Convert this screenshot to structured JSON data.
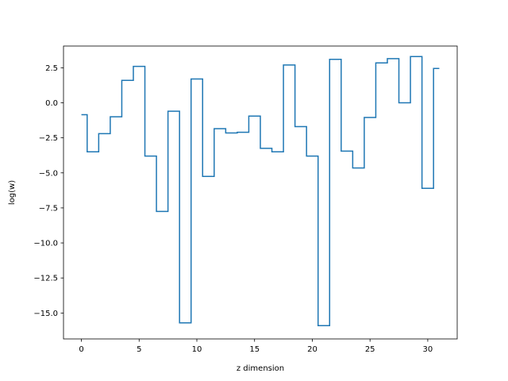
{
  "chart_data": {
    "type": "line",
    "step": "mid",
    "xlabel": "z dimension",
    "ylabel": "log(w)",
    "xlim": [
      -1.55,
      32.55
    ],
    "ylim": [
      -16.85,
      4.05
    ],
    "xticks": [
      0,
      5,
      10,
      15,
      20,
      25,
      30
    ],
    "yticks": [
      2.5,
      0.0,
      -2.5,
      -5.0,
      -7.5,
      -10.0,
      -12.5,
      -15.0
    ],
    "ytick_labels": [
      "2.5",
      "0.0",
      "−2.5",
      "−5.0",
      "−7.5",
      "−10.0",
      "−12.5",
      "−15.0"
    ],
    "color": "#1f77b4",
    "series": [
      {
        "x": [
          0,
          1,
          2,
          3,
          4,
          5,
          6,
          7,
          8,
          9,
          10,
          11,
          12,
          13,
          14,
          15,
          16,
          17,
          18,
          19,
          20,
          21,
          22,
          23,
          24,
          25,
          26,
          27,
          28,
          29,
          30,
          31
        ],
        "values": [
          -0.85,
          -3.5,
          -2.2,
          -1.0,
          1.6,
          2.6,
          -3.8,
          -7.75,
          -0.6,
          -15.7,
          1.7,
          -5.25,
          -1.85,
          -2.15,
          -2.1,
          -0.95,
          -3.25,
          -3.5,
          2.7,
          -1.7,
          -3.8,
          -15.9,
          3.1,
          -3.45,
          -4.65,
          -1.05,
          2.85,
          3.15,
          0.0,
          3.3,
          -6.1,
          2.45
        ]
      }
    ]
  }
}
